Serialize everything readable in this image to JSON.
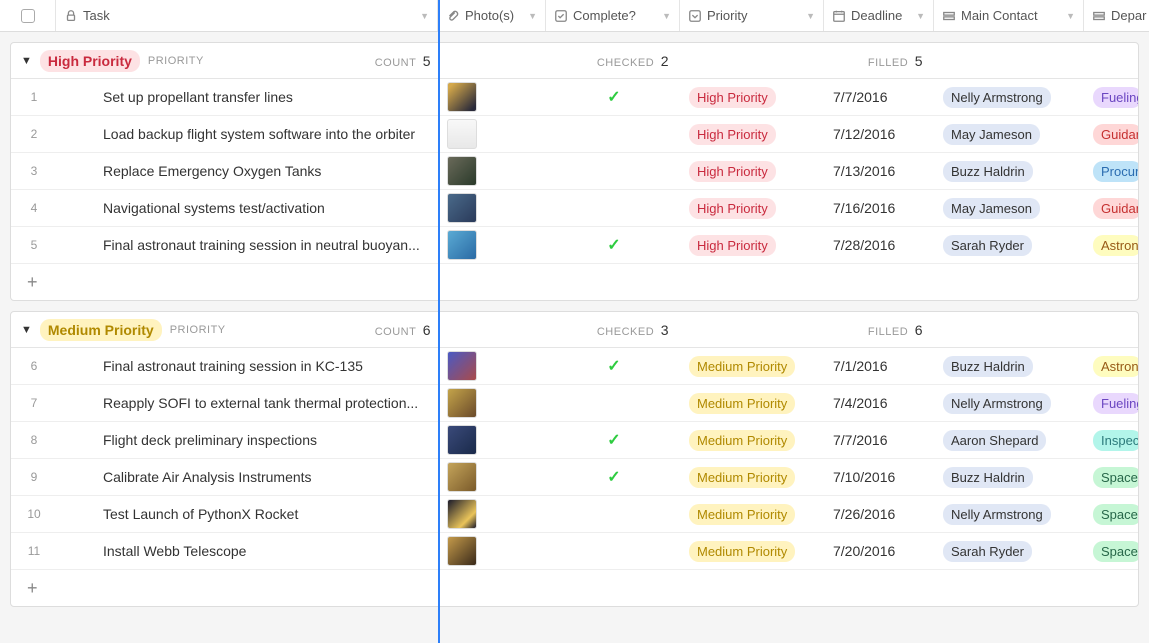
{
  "columns": {
    "task": "Task",
    "photos": "Photo(s)",
    "complete": "Complete?",
    "priority": "Priority",
    "deadline": "Deadline",
    "contact": "Main Contact",
    "dept": "Depar"
  },
  "labels": {
    "priority": "PRIORITY",
    "count": "COUNT",
    "checked": "CHECKED",
    "filled": "FILLED",
    "plus": "+"
  },
  "tagColors": {
    "High Priority": {
      "bg": "#fde2e4",
      "fg": "#c92a3e"
    },
    "Medium Priority": {
      "bg": "#fff3bf",
      "fg": "#b08900"
    }
  },
  "deptColors": {
    "Fueling": {
      "bg": "#e9d8fd",
      "fg": "#6b46c1"
    },
    "Guidanc": {
      "bg": "#fed7d7",
      "fg": "#c53030"
    },
    "Procure": {
      "bg": "#bee3f8",
      "fg": "#2b6cb0"
    },
    "Astrona": {
      "bg": "#fefcbf",
      "fg": "#975a16"
    },
    "Inspecti": {
      "bg": "#b2f5ea",
      "fg": "#2c7a7b"
    },
    "Space T": {
      "bg": "#c6f6d5",
      "fg": "#276749"
    }
  },
  "thumbGradients": {
    "rocket": "linear-gradient(135deg,#d4a84a 10%,#2a2a3a 90%)",
    "doc": "linear-gradient(180deg,#f8f8f8,#e8e8e8)",
    "tanks": "linear-gradient(135deg,#6a6a5a,#2a3a2a)",
    "nav": "linear-gradient(135deg,#4a6a8a,#2a3a5a)",
    "water": "linear-gradient(135deg,#5aaad4,#2a6aa4)",
    "kc135": "linear-gradient(135deg,#4a5ac4,#aa4a4a)",
    "sofi": "linear-gradient(135deg,#c4a44a,#6a4a2a)",
    "deck": "linear-gradient(135deg,#3a4a7a,#1a2a4a)",
    "calib": "linear-gradient(135deg,#c4a45a,#7a5a2a)",
    "launch": "linear-gradient(135deg,#1a1a2a,#eac45a 70%,#1a1a2a)",
    "webb": "linear-gradient(135deg,#c49a4a,#3a2a1a)"
  },
  "groups": [
    {
      "name": "High Priority",
      "count": 5,
      "checked": 2,
      "filled": 5,
      "rows": [
        {
          "n": 1,
          "task": "Set up propellant transfer lines",
          "photo": "rocket",
          "complete": true,
          "priority": "High Priority",
          "deadline": "7/7/2016",
          "contact": "Nelly Armstrong",
          "dept": "Fueling"
        },
        {
          "n": 2,
          "task": "Load backup flight system software into the orbiter",
          "photo": "doc",
          "complete": false,
          "priority": "High Priority",
          "deadline": "7/12/2016",
          "contact": "May Jameson",
          "dept": "Guidanc"
        },
        {
          "n": 3,
          "task": "Replace Emergency Oxygen Tanks",
          "photo": "tanks",
          "complete": false,
          "priority": "High Priority",
          "deadline": "7/13/2016",
          "contact": "Buzz Haldrin",
          "dept": "Procure"
        },
        {
          "n": 4,
          "task": "Navigational systems test/activation",
          "photo": "nav",
          "complete": false,
          "priority": "High Priority",
          "deadline": "7/16/2016",
          "contact": "May Jameson",
          "dept": "Guidanc"
        },
        {
          "n": 5,
          "task": "Final astronaut training session in neutral buoyan...",
          "photo": "water",
          "complete": true,
          "priority": "High Priority",
          "deadline": "7/28/2016",
          "contact": "Sarah Ryder",
          "dept": "Astrona"
        }
      ]
    },
    {
      "name": "Medium Priority",
      "count": 6,
      "checked": 3,
      "filled": 6,
      "rows": [
        {
          "n": 6,
          "task": "Final astronaut training session in KC-135",
          "photo": "kc135",
          "complete": true,
          "priority": "Medium Priority",
          "deadline": "7/1/2016",
          "contact": "Buzz Haldrin",
          "dept": "Astrona"
        },
        {
          "n": 7,
          "task": "Reapply SOFI to external tank thermal protection...",
          "photo": "sofi",
          "complete": false,
          "priority": "Medium Priority",
          "deadline": "7/4/2016",
          "contact": "Nelly Armstrong",
          "dept": "Fueling"
        },
        {
          "n": 8,
          "task": "Flight deck preliminary inspections",
          "photo": "deck",
          "complete": true,
          "priority": "Medium Priority",
          "deadline": "7/7/2016",
          "contact": "Aaron Shepard",
          "dept": "Inspecti"
        },
        {
          "n": 9,
          "task": "Calibrate Air Analysis Instruments",
          "photo": "calib",
          "complete": true,
          "priority": "Medium Priority",
          "deadline": "7/10/2016",
          "contact": "Buzz Haldrin",
          "dept": "Space T"
        },
        {
          "n": 10,
          "task": "Test Launch of PythonX Rocket",
          "photo": "launch",
          "complete": false,
          "priority": "Medium Priority",
          "deadline": "7/26/2016",
          "contact": "Nelly Armstrong",
          "dept": "Space T"
        },
        {
          "n": 11,
          "task": "Install Webb Telescope",
          "photo": "webb",
          "complete": false,
          "priority": "Medium Priority",
          "deadline": "7/20/2016",
          "contact": "Sarah Ryder",
          "dept": "Space T"
        }
      ]
    }
  ]
}
